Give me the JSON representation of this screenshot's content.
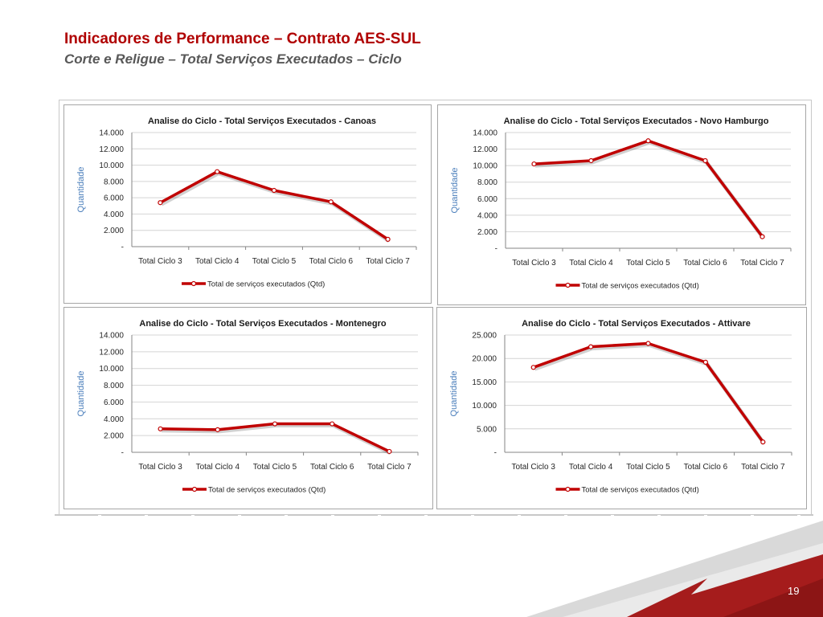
{
  "slide": {
    "title": "Indicadores de Performance – Contrato AES-SUL",
    "subtitle": "Corte e Religue – Total Serviços Executados – Ciclo",
    "page_number": "19"
  },
  "colors": {
    "title": "#b00000",
    "subtitle": "#585858",
    "series": "#c00000",
    "ylabel": "#4a7ebb",
    "footer_accent": "#9e1b1b"
  },
  "chart_data": [
    {
      "type": "line",
      "title": "Analise do Ciclo - Total  Serviços Executados - Canoas",
      "ylabel": "Quantidade",
      "xlabel": "",
      "categories": [
        "Total Ciclo 3",
        "Total Ciclo 4",
        "Total Ciclo 5",
        "Total Ciclo 6",
        "Total Ciclo 7"
      ],
      "yticks": [
        "-",
        "2.000",
        "4.000",
        "6.000",
        "8.000",
        "10.000",
        "12.000",
        "14.000"
      ],
      "ylim": [
        0,
        14000
      ],
      "grid": true,
      "legend_position": "bottom",
      "series": [
        {
          "name": "Total de serviços executados (Qtd)",
          "values": [
            5400,
            9200,
            6900,
            5500,
            900
          ]
        }
      ]
    },
    {
      "type": "line",
      "title": "Analise do Ciclo - Total  Serviços Executados - Novo Hamburgo",
      "ylabel": "Quantidade",
      "xlabel": "",
      "categories": [
        "Total Ciclo 3",
        "Total Ciclo 4",
        "Total Ciclo 5",
        "Total Ciclo 6",
        "Total Ciclo 7"
      ],
      "yticks": [
        "-",
        "2.000",
        "4.000",
        "6.000",
        "8.000",
        "10.000",
        "12.000",
        "14.000"
      ],
      "ylim": [
        0,
        14000
      ],
      "grid": true,
      "legend_position": "bottom",
      "series": [
        {
          "name": "Total de serviços executados (Qtd)",
          "values": [
            10200,
            10600,
            13000,
            10600,
            1400
          ]
        }
      ]
    },
    {
      "type": "line",
      "title": "Analise do Ciclo - Total  Serviços Executados - Montenegro",
      "ylabel": "Quantidade",
      "xlabel": "",
      "categories": [
        "Total Ciclo 3",
        "Total Ciclo 4",
        "Total Ciclo 5",
        "Total Ciclo 6",
        "Total Ciclo 7"
      ],
      "yticks": [
        "-",
        "2.000",
        "4.000",
        "6.000",
        "8.000",
        "10.000",
        "12.000",
        "14.000"
      ],
      "ylim": [
        0,
        14000
      ],
      "grid": true,
      "legend_position": "bottom",
      "series": [
        {
          "name": "Total de serviços executados (Qtd)",
          "values": [
            2800,
            2700,
            3400,
            3400,
            100
          ]
        }
      ]
    },
    {
      "type": "line",
      "title": "Analise do Ciclo - Total  Serviços Executados  - Attivare",
      "ylabel": "Quantidade",
      "xlabel": "",
      "categories": [
        "Total Ciclo 3",
        "Total Ciclo 4",
        "Total Ciclo 5",
        "Total Ciclo 6",
        "Total Ciclo 7"
      ],
      "yticks": [
        "-",
        "5.000",
        "10.000",
        "15.000",
        "20.000",
        "25.000"
      ],
      "ylim": [
        0,
        25000
      ],
      "grid": true,
      "legend_position": "bottom",
      "series": [
        {
          "name": "Total de serviços executados (Qtd)",
          "values": [
            18100,
            22500,
            23200,
            19200,
            2200
          ]
        }
      ]
    }
  ]
}
